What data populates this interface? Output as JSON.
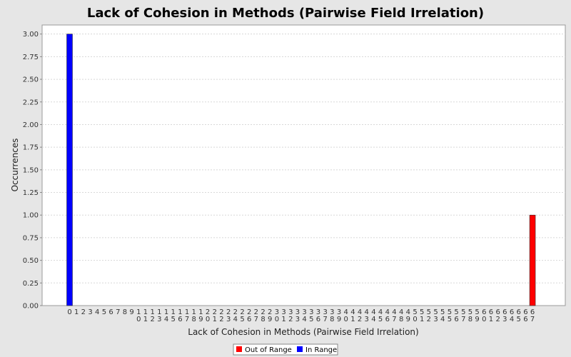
{
  "chart_data": {
    "type": "bar",
    "title": "Lack of Cohesion in Methods (Pairwise Field Irrelation)",
    "xlabel": "Lack of Cohesion in Methods (Pairwise Field Irrelation)",
    "ylabel": "Occurrences",
    "ylim": [
      0,
      3.1
    ],
    "yticks": [
      "0.00",
      "0.25",
      "0.50",
      "0.75",
      "1.00",
      "1.25",
      "1.50",
      "1.75",
      "2.00",
      "2.25",
      "2.50",
      "2.75",
      "3.00"
    ],
    "categories": [
      "0",
      "1",
      "2",
      "3",
      "4",
      "5",
      "6",
      "7",
      "8",
      "9",
      "10",
      "11",
      "12",
      "13",
      "14",
      "15",
      "16",
      "17",
      "18",
      "19",
      "20",
      "21",
      "22",
      "23",
      "24",
      "25",
      "26",
      "27",
      "28",
      "29",
      "30",
      "31",
      "32",
      "33",
      "34",
      "35",
      "36",
      "37",
      "38",
      "39",
      "40",
      "41",
      "42",
      "43",
      "44",
      "45",
      "46",
      "47",
      "48",
      "49",
      "50",
      "51",
      "52",
      "53",
      "54",
      "55",
      "56",
      "57",
      "58",
      "59",
      "60",
      "61",
      "62",
      "63",
      "64",
      "65",
      "66",
      "67"
    ],
    "series": [
      {
        "name": "Out of Range",
        "color": "#ff0000",
        "values": [
          0,
          0,
          0,
          0,
          0,
          0,
          0,
          0,
          0,
          0,
          0,
          0,
          0,
          0,
          0,
          0,
          0,
          0,
          0,
          0,
          0,
          0,
          0,
          0,
          0,
          0,
          0,
          0,
          0,
          0,
          0,
          0,
          0,
          0,
          0,
          0,
          0,
          0,
          0,
          0,
          0,
          0,
          0,
          0,
          0,
          0,
          0,
          0,
          0,
          0,
          0,
          0,
          0,
          0,
          0,
          0,
          0,
          0,
          0,
          0,
          0,
          0,
          0,
          0,
          0,
          0,
          0,
          1
        ]
      },
      {
        "name": "In Range",
        "color": "#0000ff",
        "values": [
          3,
          0,
          0,
          0,
          0,
          0,
          0,
          0,
          0,
          0,
          0,
          0,
          0,
          0,
          0,
          0,
          0,
          0,
          0,
          0,
          0,
          0,
          0,
          0,
          0,
          0,
          0,
          0,
          0,
          0,
          0,
          0,
          0,
          0,
          0,
          0,
          0,
          0,
          0,
          0,
          0,
          0,
          0,
          0,
          0,
          0,
          0,
          0,
          0,
          0,
          0,
          0,
          0,
          0,
          0,
          0,
          0,
          0,
          0,
          0,
          0,
          0,
          0,
          0,
          0,
          0,
          0,
          0
        ]
      }
    ],
    "grid": true,
    "legend_position": "bottom"
  }
}
